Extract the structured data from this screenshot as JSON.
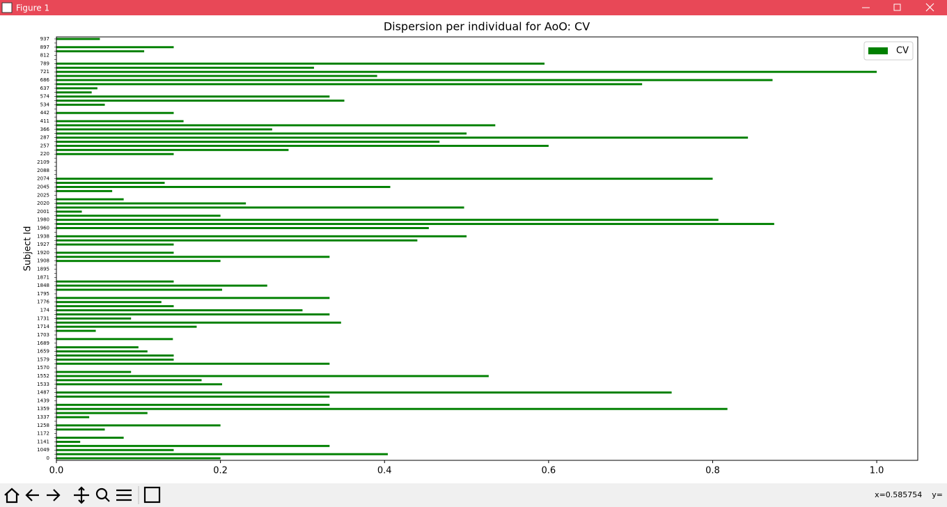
{
  "window": {
    "title": "Figure 1"
  },
  "chart_data": {
    "type": "barh",
    "title": "Dispersion per individual for AoO: CV",
    "ylabel": "Subject Id",
    "categories": [
      "0",
      null,
      "1049",
      null,
      "1141",
      null,
      "1172",
      null,
      "1258",
      null,
      "1337",
      null,
      "1359",
      null,
      "1439",
      null,
      "1487",
      null,
      "1533",
      null,
      "1552",
      null,
      "1570",
      null,
      "1579",
      null,
      "1659",
      null,
      "1689",
      null,
      "1703",
      null,
      "1714",
      null,
      "1731",
      null,
      "174",
      null,
      "1776",
      null,
      "1795",
      null,
      "1848",
      null,
      "1871",
      null,
      "1895",
      null,
      "1908",
      null,
      "1920",
      null,
      "1927",
      null,
      "1938",
      null,
      "1960",
      null,
      "1980",
      null,
      "2001",
      null,
      "2020",
      null,
      "2025",
      null,
      "2045",
      null,
      "2074",
      null,
      "2088",
      null,
      "2109",
      null,
      "220",
      null,
      "257",
      null,
      "287",
      null,
      "366",
      null,
      "411",
      null,
      "442",
      null,
      "534",
      null,
      "574",
      null,
      "637",
      null,
      "686",
      null,
      "721",
      null,
      "789",
      null,
      "812",
      null,
      "897",
      null,
      "937"
    ],
    "series": [
      {
        "name": "CV",
        "color": "#008000",
        "values": [
          0.2,
          0.404,
          0.143,
          0.333,
          0.029,
          0.082,
          0,
          0.059,
          0.2,
          0,
          0.04,
          0.111,
          0.818,
          0.333,
          0,
          0.333,
          0.75,
          0,
          0.202,
          0.177,
          0.527,
          0.091,
          0,
          0.333,
          0.143,
          0.143,
          0.111,
          0.1,
          0,
          0.142,
          0,
          0.048,
          0.171,
          0.347,
          0.091,
          0.333,
          0.3,
          0.143,
          0.128,
          0.333,
          0,
          0.202,
          0.257,
          0.143,
          0,
          0,
          0,
          0,
          0.2,
          0.333,
          0.143,
          0,
          0.143,
          0.44,
          0.5,
          0,
          0.454,
          0.875,
          0.807,
          0.2,
          0.031,
          0.497,
          0.231,
          0.082,
          0,
          0.068,
          0.407,
          0.132,
          0.8,
          0,
          0,
          0,
          0,
          0,
          0.143,
          0.283,
          0.6,
          0.467,
          0.843,
          0.5,
          0.263,
          0.535,
          0.155,
          0,
          0.143,
          0,
          0.059,
          0.351,
          0.333,
          0.043,
          0.05,
          0.714,
          0.873,
          0.391,
          1.0,
          0.314,
          0.595,
          0,
          0,
          0.107,
          0.143,
          0,
          0.053
        ]
      }
    ],
    "xlim": [
      0,
      1.05
    ],
    "xticks": [
      {
        "value": 0,
        "label": "0.0"
      },
      0.2,
      0.4,
      0.6,
      0.8,
      {
        "value": 1,
        "label": "1.0"
      }
    ],
    "legend": "upper right"
  },
  "status": {
    "text": "x=0.585754    y="
  }
}
